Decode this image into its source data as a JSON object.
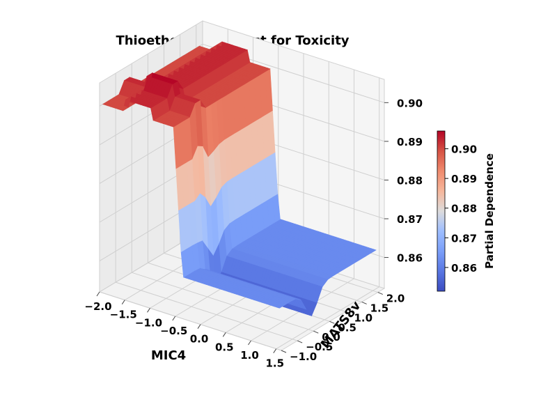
{
  "chart_data": {
    "type": "surface3d",
    "title": "Thioether in XGBoost for Toxicity",
    "xlabel": "MIC4",
    "ylabel": "MATS8v",
    "zlabel": "",
    "colorbar_label": "Partial Dependence",
    "colormap": "coolwarm",
    "x_range": [
      -2.0,
      1.6
    ],
    "y_range": [
      -1.0,
      2.2
    ],
    "z_range": [
      0.852,
      0.906
    ],
    "x_ticks": [
      "−2.0",
      "−1.5",
      "−1.0",
      "−0.5",
      "0.0",
      "0.5",
      "1.0",
      "1.5"
    ],
    "y_ticks": [
      "−1.0",
      "−0.5",
      "0.0",
      "0.5",
      "1.0",
      "1.5",
      "2.0"
    ],
    "z_ticks": [
      "0.86",
      "0.87",
      "0.88",
      "0.89",
      "0.90"
    ],
    "colorbar_ticks": [
      "0.86",
      "0.87",
      "0.88",
      "0.89",
      "0.90"
    ],
    "colorbar_range": [
      0.852,
      0.906
    ],
    "surface": {
      "step_x_mic4": -0.6,
      "z_high_plateau": 0.9,
      "z_high_max": 0.905,
      "z_low_plateau": 0.862,
      "z_low_min": 0.854
    }
  }
}
